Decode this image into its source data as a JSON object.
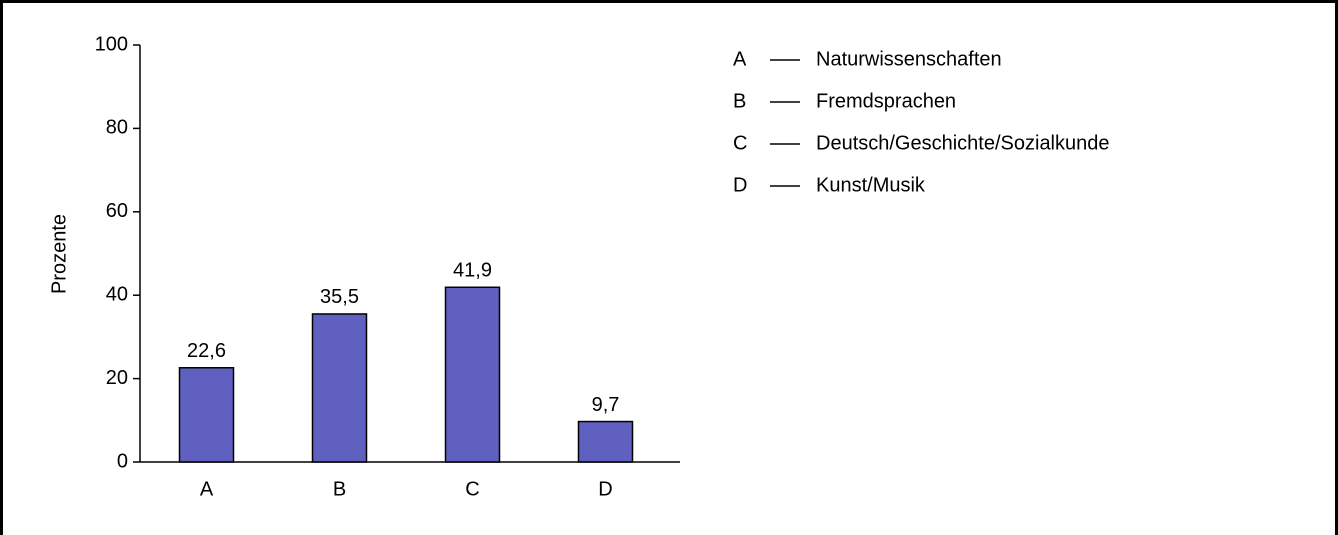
{
  "chart_data": {
    "type": "bar",
    "ylabel": "Prozente",
    "categories": [
      "A",
      "B",
      "C",
      "D"
    ],
    "category_names": [
      "Naturwissenschaften",
      "Fremdsprachen",
      "Deutsch/Geschichte/Sozialkunde",
      "Kunst/Musik"
    ],
    "values": [
      22.6,
      35.5,
      41.9,
      9.7
    ],
    "value_labels": [
      "22,6",
      "35,5",
      "41,9",
      "9,7"
    ],
    "color": "#6060c0",
    "ylim": [
      0,
      100
    ],
    "yticks": [
      0,
      20,
      40,
      60,
      80,
      100
    ],
    "grid": false
  }
}
